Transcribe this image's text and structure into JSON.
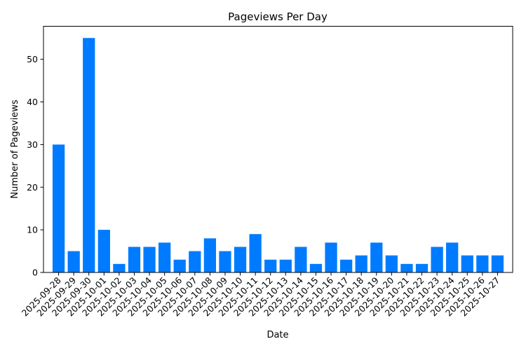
{
  "chart_data": {
    "type": "bar",
    "title": "Pageviews Per Day",
    "xlabel": "Date",
    "ylabel": "Number of Pageviews",
    "ylim": [
      0,
      57.75
    ],
    "yticks": [
      0,
      10,
      20,
      30,
      40,
      50
    ],
    "grid": false,
    "legend": "none",
    "bar_color": "#007bff",
    "categories": [
      "2025-09-28",
      "2025-09-29",
      "2025-09-30",
      "2025-10-01",
      "2025-10-02",
      "2025-10-03",
      "2025-10-04",
      "2025-10-05",
      "2025-10-06",
      "2025-10-07",
      "2025-10-08",
      "2025-10-09",
      "2025-10-10",
      "2025-10-11",
      "2025-10-12",
      "2025-10-13",
      "2025-10-14",
      "2025-10-15",
      "2025-10-16",
      "2025-10-17",
      "2025-10-18",
      "2025-10-19",
      "2025-10-20",
      "2025-10-21",
      "2025-10-22",
      "2025-10-23",
      "2025-10-24",
      "2025-10-25",
      "2025-10-26",
      "2025-10-27"
    ],
    "values": [
      30,
      5,
      55,
      10,
      2,
      6,
      6,
      7,
      3,
      5,
      8,
      5,
      6,
      9,
      3,
      3,
      6,
      2,
      7,
      3,
      4,
      7,
      4,
      2,
      2,
      6,
      7,
      4,
      4,
      4
    ]
  }
}
